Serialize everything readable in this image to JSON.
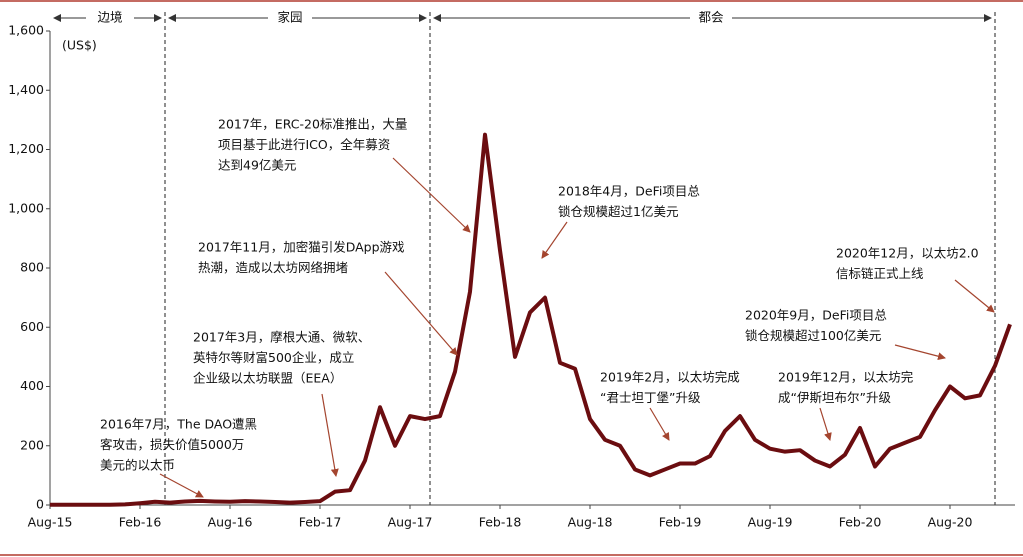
{
  "chart_data": {
    "type": "line",
    "y_unit": "(US$)",
    "color": "#6b0d10",
    "categories": [
      "Aug-15",
      null,
      null,
      null,
      null,
      null,
      "Feb-16",
      null,
      null,
      null,
      null,
      null,
      "Aug-16",
      null,
      null,
      null,
      null,
      null,
      "Feb-17",
      null,
      null,
      null,
      null,
      null,
      "Aug-17",
      null,
      null,
      null,
      null,
      null,
      "Feb-18",
      null,
      null,
      null,
      null,
      null,
      "Aug-18",
      null,
      null,
      null,
      null,
      null,
      "Feb-19",
      null,
      null,
      null,
      null,
      null,
      "Aug-19",
      null,
      null,
      null,
      null,
      null,
      "Feb-20",
      null,
      null,
      null,
      null,
      null,
      "Aug-20",
      null,
      null,
      null,
      null
    ],
    "values": [
      1,
      1,
      1,
      1,
      1,
      2,
      6,
      11,
      8,
      12,
      14,
      12,
      11,
      13,
      12,
      10,
      8,
      10,
      13,
      45,
      50,
      150,
      330,
      200,
      300,
      290,
      300,
      450,
      720,
      1250,
      860,
      500,
      650,
      700,
      480,
      460,
      290,
      220,
      200,
      120,
      100,
      120,
      140,
      140,
      165,
      250,
      300,
      220,
      190,
      180,
      185,
      150,
      130,
      170,
      260,
      130,
      190,
      210,
      230,
      320,
      400,
      360,
      370,
      470,
      610
    ],
    "ylim": [
      0,
      1600
    ],
    "yticks": [
      0,
      200,
      400,
      600,
      800,
      {
        "value": 1000,
        "label": "1,000"
      },
      {
        "value": 1200,
        "label": "1,200"
      },
      {
        "value": 1400,
        "label": "1,400"
      },
      {
        "value": 1600,
        "label": "1,600"
      }
    ],
    "phases": [
      "边境",
      "家园",
      "都会"
    ],
    "annotations": [
      [
        "2016年7月，The DAO遭黑",
        "客攻击，损失价值5000万",
        "美元的以太币"
      ],
      [
        "2017年3月，摩根大通、微软、",
        "英特尔等财富500企业，成立",
        "企业级以太坊联盟（EEA）"
      ],
      [
        "2017年11月，加密猫引发DApp游戏",
        "热潮，造成以太坊网络拥堵"
      ],
      [
        "2017年，ERC-20标准推出，大量",
        "项目基于此进行ICO，全年募资",
        "达到49亿美元"
      ],
      [
        "2018年4月，DeFi项目总",
        "锁仓规模超过1亿美元"
      ],
      [
        "2019年2月，以太坊完成",
        "“君士坦丁堡”升级"
      ],
      [
        "2019年12月，以太坊完",
        "成“伊斯坦布尔”升级"
      ],
      [
        "2020年9月，DeFi项目总",
        "锁仓规模超过100亿美元"
      ],
      [
        "2020年12月，以太坊2.0",
        "信标链正式上线"
      ]
    ]
  }
}
